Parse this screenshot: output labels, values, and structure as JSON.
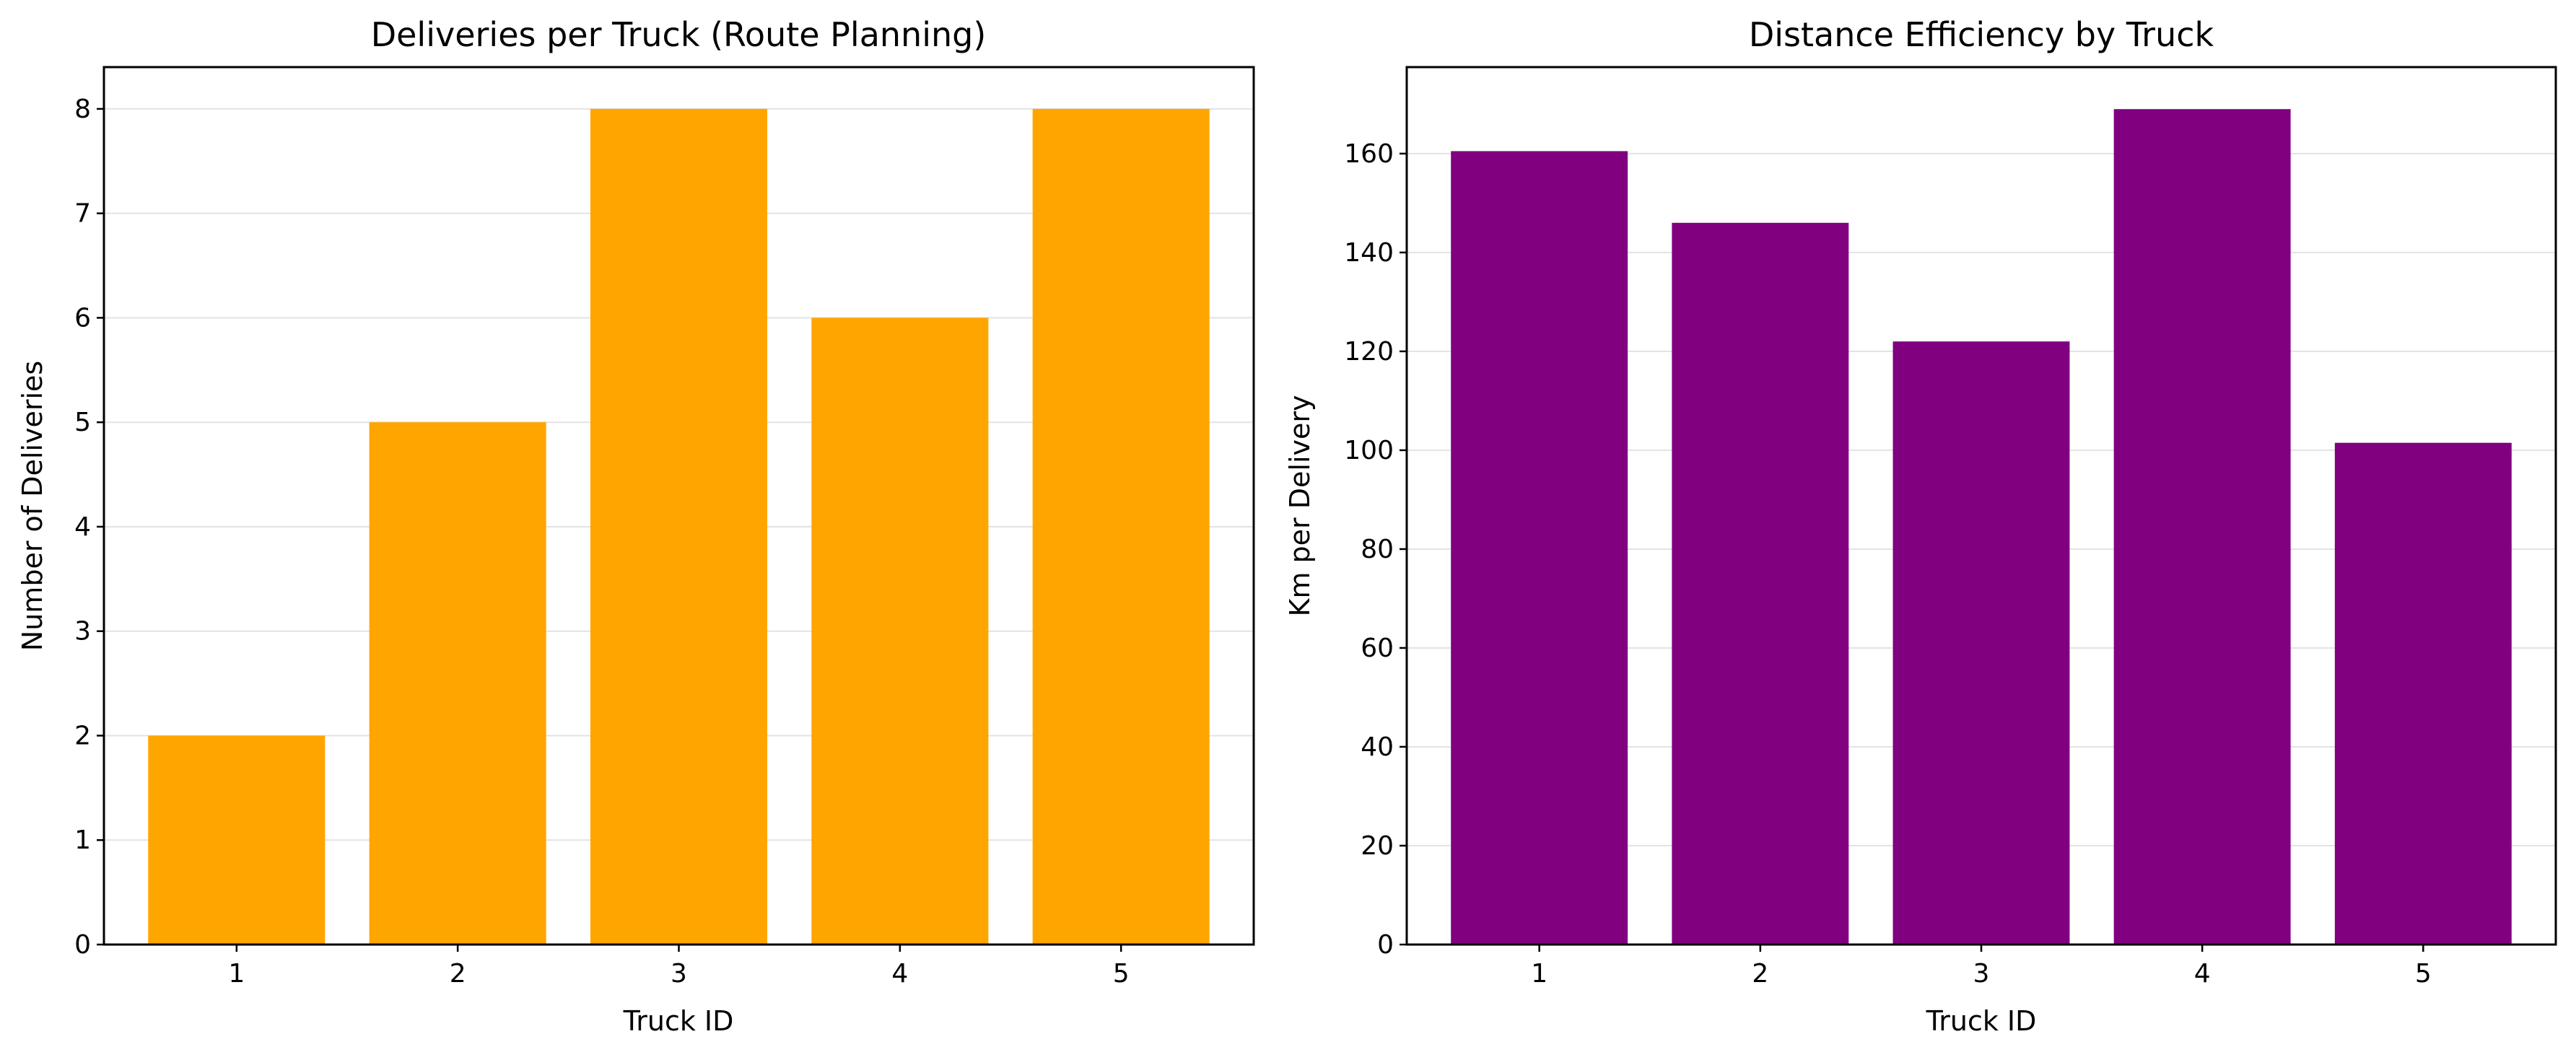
{
  "chart_data": [
    {
      "type": "bar",
      "title": "Deliveries per Truck (Route Planning)",
      "xlabel": "Truck ID",
      "ylabel": "Number of Deliveries",
      "categories": [
        "1",
        "2",
        "3",
        "4",
        "5"
      ],
      "values": [
        2,
        5,
        8,
        6,
        8
      ],
      "ylim": [
        0,
        8.4
      ],
      "yticks": [
        0,
        1,
        2,
        3,
        4,
        5,
        6,
        7,
        8
      ],
      "color": "#FFA500",
      "grid": "y"
    },
    {
      "type": "bar",
      "title": "Distance Efficiency by Truck",
      "xlabel": "Truck ID",
      "ylabel": "Km per Delivery",
      "categories": [
        "1",
        "2",
        "3",
        "4",
        "5"
      ],
      "values": [
        160.5,
        146,
        122,
        169,
        101.5
      ],
      "ylim": [
        0,
        177.5
      ],
      "yticks": [
        0,
        20,
        40,
        60,
        80,
        100,
        120,
        140,
        160
      ],
      "color": "#800080",
      "grid": "y"
    }
  ]
}
